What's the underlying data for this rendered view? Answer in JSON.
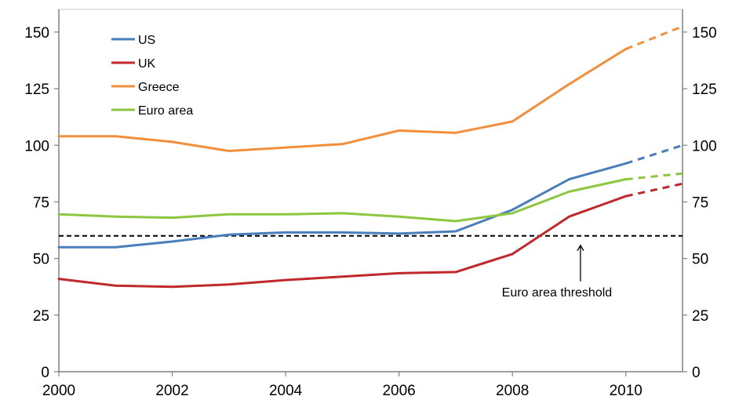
{
  "chart_data": {
    "type": "line",
    "x": [
      2000,
      2001,
      2002,
      2003,
      2004,
      2005,
      2006,
      2007,
      2008,
      2009,
      2010,
      2011
    ],
    "projection_from": 2010,
    "series": [
      {
        "name": "US",
        "color": "#4a7ebb",
        "values": [
          55,
          55,
          57.5,
          60.5,
          61.5,
          61.5,
          61,
          62,
          71.5,
          85,
          92,
          100
        ]
      },
      {
        "name": "UK",
        "color": "#c0282b",
        "values": [
          41,
          38,
          37.5,
          38.5,
          40.5,
          42,
          43.5,
          44,
          52,
          68.5,
          77.5,
          83
        ]
      },
      {
        "name": "Greece",
        "color": "#f38f3a",
        "values": [
          104,
          104,
          101.5,
          97.5,
          99,
          100.5,
          106.5,
          105.5,
          110.5,
          127,
          142.5,
          152.5
        ]
      },
      {
        "name": "Euro area",
        "color": "#8dc63f",
        "values": [
          69.5,
          68.5,
          68,
          69.5,
          69.5,
          70,
          68.5,
          66.5,
          70,
          79.5,
          85,
          87.5
        ]
      }
    ],
    "threshold": {
      "value": 60,
      "label": "Euro area threshold",
      "arrow_x": 2009.2
    },
    "xlim": [
      2000,
      2011
    ],
    "ylim": [
      0,
      160
    ],
    "xticks": [
      "2000",
      "2002",
      "2004",
      "2006",
      "2008",
      "2010"
    ],
    "yticks": [
      "0",
      "25",
      "50",
      "75",
      "100",
      "125",
      "150"
    ],
    "legend_position": "top-left",
    "grid": false
  }
}
